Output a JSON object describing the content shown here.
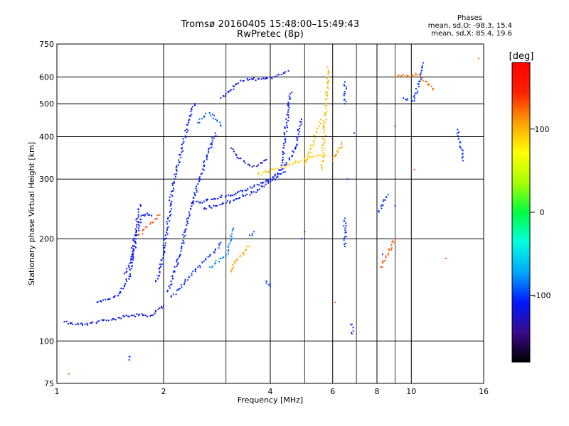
{
  "title_line1": "Tromsø 20160405 15:48:00–15:49:43",
  "title_line2": "RwPretec (8p)",
  "phases": {
    "title": "Phases",
    "line_o": "mean, sd,O: -98.3, 15.4",
    "line_x": "mean, sd,X: 85.4, 19.6"
  },
  "chart_data": {
    "type": "scatter",
    "xlabel": "Frequency [MHz]",
    "ylabel": "Stationary phase Virtual Height [km]",
    "x_scale": "log",
    "y_scale": "log",
    "xlim": [
      1,
      16
    ],
    "ylim": [
      75,
      750
    ],
    "x_ticks": [
      1,
      2,
      4,
      6,
      8,
      10,
      16
    ],
    "x_tick_labels": [
      "1",
      "2",
      "4",
      "6",
      "8",
      "10",
      "16"
    ],
    "x_minor_grid": [
      3,
      5,
      7,
      9
    ],
    "y_ticks": [
      75,
      100,
      200,
      300,
      400,
      500,
      600,
      750
    ],
    "y_tick_labels": [
      "75",
      "100",
      "200",
      "300",
      "400",
      "500",
      "600",
      "750"
    ],
    "grid": true,
    "colorbar": {
      "label": "[deg]",
      "min": -180,
      "max": 180,
      "ticks": [
        -100,
        0,
        100
      ],
      "tick_labels": [
        "-100",
        "0",
        "100"
      ],
      "colors": [
        "#000000",
        "#3a0a8c",
        "#0018ff",
        "#00a8ff",
        "#00ffe0",
        "#00ff40",
        "#a8ff00",
        "#ffff00",
        "#ffa000",
        "#ff2000",
        "#ff0000"
      ]
    },
    "series": [
      {
        "phase": -115,
        "points": [
          [
            1.05,
            114
          ],
          [
            1.1,
            113
          ],
          [
            1.15,
            112
          ],
          [
            1.2,
            112
          ],
          [
            1.25,
            113
          ],
          [
            1.3,
            114
          ],
          [
            1.35,
            115
          ],
          [
            1.4,
            115
          ],
          [
            1.45,
            116
          ],
          [
            1.5,
            117
          ],
          [
            1.55,
            118
          ],
          [
            1.6,
            118
          ],
          [
            1.65,
            119
          ],
          [
            1.7,
            119
          ],
          [
            1.75,
            119
          ],
          [
            1.8,
            118
          ],
          [
            1.85,
            119
          ],
          [
            1.9,
            122
          ],
          [
            1.95,
            125
          ],
          [
            2.0,
            127
          ]
        ]
      },
      {
        "phase": -110,
        "points": [
          [
            1.3,
            130
          ],
          [
            1.35,
            132
          ],
          [
            1.4,
            133
          ],
          [
            1.45,
            135
          ],
          [
            1.5,
            138
          ],
          [
            1.55,
            145
          ],
          [
            1.6,
            155
          ],
          [
            1.63,
            170
          ],
          [
            1.65,
            185
          ],
          [
            1.67,
            200
          ],
          [
            1.7,
            215
          ],
          [
            1.72,
            228
          ],
          [
            1.75,
            235
          ],
          [
            1.8,
            238
          ],
          [
            1.85,
            234
          ]
        ]
      },
      {
        "phase": -112,
        "points": [
          [
            1.55,
            158
          ],
          [
            1.6,
            165
          ],
          [
            1.62,
            175
          ],
          [
            1.64,
            190
          ],
          [
            1.66,
            205
          ],
          [
            1.68,
            220
          ],
          [
            1.7,
            240
          ],
          [
            1.72,
            252
          ]
        ]
      },
      {
        "phase": -108,
        "points": [
          [
            1.9,
            150
          ],
          [
            1.95,
            160
          ],
          [
            2.0,
            180
          ],
          [
            2.02,
            200
          ],
          [
            2.05,
            215
          ],
          [
            2.08,
            240
          ],
          [
            2.1,
            270
          ],
          [
            2.15,
            300
          ],
          [
            2.2,
            330
          ],
          [
            2.25,
            360
          ],
          [
            2.3,
            400
          ],
          [
            2.35,
            440
          ],
          [
            2.4,
            480
          ],
          [
            2.45,
            500
          ]
        ]
      },
      {
        "phase": -105,
        "points": [
          [
            2.05,
            140
          ],
          [
            2.1,
            150
          ],
          [
            2.15,
            160
          ],
          [
            2.2,
            175
          ],
          [
            2.25,
            190
          ],
          [
            2.3,
            210
          ],
          [
            2.35,
            230
          ],
          [
            2.4,
            250
          ],
          [
            2.45,
            270
          ],
          [
            2.5,
            290
          ],
          [
            2.55,
            310
          ],
          [
            2.6,
            330
          ],
          [
            2.65,
            350
          ],
          [
            2.7,
            370
          ],
          [
            2.75,
            390
          ],
          [
            2.8,
            410
          ]
        ]
      },
      {
        "phase": -102,
        "points": [
          [
            2.1,
            135
          ],
          [
            2.2,
            142
          ],
          [
            2.3,
            150
          ],
          [
            2.4,
            158
          ],
          [
            2.5,
            165
          ],
          [
            2.6,
            172
          ],
          [
            2.7,
            178
          ],
          [
            2.8,
            185
          ],
          [
            2.9,
            195
          ]
        ]
      },
      {
        "phase": -110,
        "points": [
          [
            2.4,
            255
          ],
          [
            2.6,
            258
          ],
          [
            2.8,
            262
          ],
          [
            3.0,
            268
          ],
          [
            3.2,
            272
          ],
          [
            3.4,
            278
          ],
          [
            3.6,
            285
          ],
          [
            3.8,
            292
          ],
          [
            4.0,
            300
          ],
          [
            4.2,
            312
          ],
          [
            4.4,
            330
          ],
          [
            4.6,
            350
          ],
          [
            4.7,
            370
          ],
          [
            4.8,
            400
          ],
          [
            4.85,
            430
          ],
          [
            4.9,
            450
          ]
        ]
      },
      {
        "phase": -108,
        "points": [
          [
            2.6,
            245
          ],
          [
            2.8,
            250
          ],
          [
            3.0,
            255
          ],
          [
            3.2,
            262
          ],
          [
            3.4,
            268
          ],
          [
            3.6,
            275
          ],
          [
            3.8,
            285
          ],
          [
            4.0,
            295
          ],
          [
            4.2,
            305
          ],
          [
            4.4,
            315
          ]
        ]
      },
      {
        "phase": -120,
        "points": [
          [
            3.1,
            370
          ],
          [
            3.2,
            355
          ],
          [
            3.3,
            345
          ],
          [
            3.4,
            335
          ],
          [
            3.5,
            330
          ],
          [
            3.6,
            328
          ],
          [
            3.7,
            330
          ],
          [
            3.8,
            335
          ],
          [
            3.9,
            342
          ]
        ]
      },
      {
        "phase": -112,
        "points": [
          [
            2.9,
            520
          ],
          [
            3.0,
            535
          ],
          [
            3.1,
            550
          ],
          [
            3.2,
            570
          ],
          [
            3.3,
            585
          ],
          [
            3.5,
            590
          ],
          [
            3.7,
            592
          ],
          [
            3.9,
            595
          ],
          [
            4.1,
            600
          ],
          [
            4.3,
            610
          ],
          [
            4.5,
            625
          ]
        ]
      },
      {
        "phase": -110,
        "points": [
          [
            4.3,
            320
          ],
          [
            4.35,
            360
          ],
          [
            4.4,
            400
          ],
          [
            4.45,
            440
          ],
          [
            4.5,
            480
          ],
          [
            4.55,
            520
          ],
          [
            4.6,
            540
          ]
        ]
      },
      {
        "phase": 90,
        "points": [
          [
            3.7,
            310
          ],
          [
            3.9,
            315
          ],
          [
            4.1,
            320
          ],
          [
            4.3,
            325
          ],
          [
            4.5,
            330
          ],
          [
            4.7,
            335
          ],
          [
            4.9,
            340
          ],
          [
            5.1,
            345
          ],
          [
            5.3,
            350
          ],
          [
            5.5,
            352
          ],
          [
            5.7,
            355
          ]
        ]
      },
      {
        "phase": 100,
        "points": [
          [
            5.6,
            320
          ],
          [
            5.62,
            350
          ],
          [
            5.65,
            380
          ],
          [
            5.68,
            410
          ],
          [
            5.7,
            440
          ],
          [
            5.72,
            470
          ],
          [
            5.75,
            500
          ],
          [
            5.78,
            530
          ],
          [
            5.8,
            560
          ],
          [
            5.82,
            600
          ],
          [
            5.8,
            640
          ]
        ]
      },
      {
        "phase": 95,
        "points": [
          [
            5.0,
            330
          ],
          [
            5.1,
            350
          ],
          [
            5.2,
            370
          ],
          [
            5.3,
            390
          ],
          [
            5.4,
            410
          ],
          [
            5.5,
            430
          ],
          [
            5.55,
            450
          ]
        ]
      },
      {
        "phase": 110,
        "points": [
          [
            6.0,
            340
          ],
          [
            6.1,
            350
          ],
          [
            6.2,
            360
          ],
          [
            6.3,
            370
          ],
          [
            6.35,
            385
          ]
        ]
      },
      {
        "phase": 105,
        "points": [
          [
            3.1,
            160
          ],
          [
            3.15,
            165
          ],
          [
            3.2,
            172
          ],
          [
            3.3,
            178
          ],
          [
            3.4,
            185
          ],
          [
            3.5,
            190
          ]
        ]
      },
      {
        "phase": -80,
        "points": [
          [
            2.7,
            165
          ],
          [
            2.8,
            170
          ],
          [
            2.9,
            175
          ],
          [
            3.0,
            180
          ],
          [
            3.05,
            185
          ],
          [
            3.1,
            200
          ],
          [
            3.15,
            215
          ]
        ]
      },
      {
        "phase": -90,
        "points": [
          [
            2.5,
            440
          ],
          [
            2.6,
            460
          ],
          [
            2.7,
            470
          ],
          [
            2.8,
            450
          ],
          [
            2.9,
            430
          ]
        ]
      },
      {
        "phase": 120,
        "points": [
          [
            9.0,
            600
          ],
          [
            10.5,
            610
          ],
          [
            11.5,
            550
          ],
          [
            15.5,
            680
          ]
        ]
      },
      {
        "phase": -100,
        "points": [
          [
            1.6,
            90
          ],
          [
            1.6,
            88
          ],
          [
            8.3,
            180
          ],
          [
            9.5,
            520
          ],
          [
            10.2,
            510
          ],
          [
            10.8,
            660
          ],
          [
            13.5,
            420
          ],
          [
            14.0,
            340
          ],
          [
            6.5,
            580
          ],
          [
            6.5,
            500
          ],
          [
            6.6,
            300
          ],
          [
            6.9,
            410
          ],
          [
            6.8,
            112
          ],
          [
            6.8,
            105
          ],
          [
            8.6,
            270
          ],
          [
            8.1,
            240
          ],
          [
            9.0,
            430
          ],
          [
            9.0,
            250
          ],
          [
            6.5,
            230
          ],
          [
            6.5,
            190
          ],
          [
            5.0,
            210
          ],
          [
            3.9,
            150
          ],
          [
            4.0,
            145
          ],
          [
            4.9,
            200
          ],
          [
            3.5,
            205
          ],
          [
            3.6,
            210
          ]
        ]
      },
      {
        "phase": 130,
        "points": [
          [
            1.08,
            80
          ],
          [
            2.0,
            97
          ],
          [
            8.2,
            165
          ],
          [
            9.0,
            200
          ],
          [
            10.2,
            320
          ],
          [
            12.5,
            175
          ],
          [
            6.1,
            130
          ],
          [
            1.7,
            205
          ],
          [
            1.95,
            235
          ]
        ]
      }
    ]
  }
}
